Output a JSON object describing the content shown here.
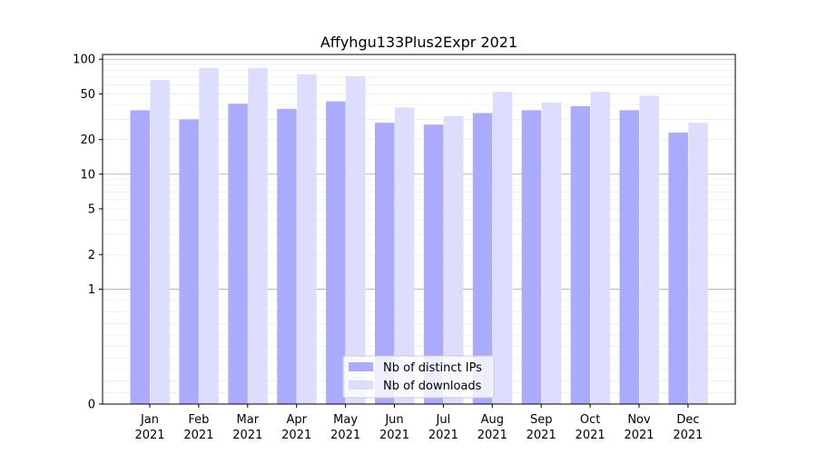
{
  "chart_data": {
    "type": "bar",
    "title": "Affyhgu133Plus2Expr 2021",
    "xlabel": "",
    "ylabel": "",
    "yscale": "symlog",
    "ylim": [
      0,
      110
    ],
    "yticks": [
      0,
      1,
      2,
      5,
      10,
      20,
      50,
      100
    ],
    "ytick_labels": [
      "0",
      "1",
      "2",
      "5",
      "10",
      "20",
      "50",
      "100"
    ],
    "categories": [
      "Jan",
      "Feb",
      "Mar",
      "Apr",
      "May",
      "Jun",
      "Jul",
      "Aug",
      "Sep",
      "Oct",
      "Nov",
      "Dec"
    ],
    "category_year": "2021",
    "legend_position": "bottom-center",
    "grid": true,
    "series": [
      {
        "name": "Nb of distinct IPs",
        "color": "#aaaaff",
        "values": [
          36,
          30,
          41,
          37,
          43,
          28,
          27,
          34,
          36,
          39,
          36,
          23
        ]
      },
      {
        "name": "Nb of downloads",
        "color": "#ddddff",
        "values": [
          66,
          84,
          84,
          74,
          71,
          38,
          32,
          52,
          42,
          52,
          48,
          28
        ]
      }
    ]
  }
}
